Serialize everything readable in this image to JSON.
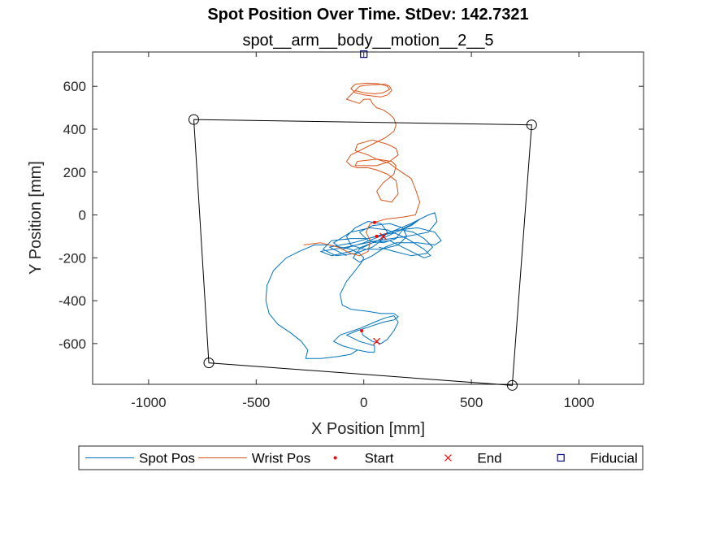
{
  "chart_data": {
    "type": "line",
    "title": "Spot Position Over Time. StDev: 142.7321",
    "subtitle": "spot__arm__body__motion__2__5",
    "xlabel": "X Position [mm]",
    "ylabel": "Y Position [mm]",
    "xlim": [
      -1260,
      1300
    ],
    "ylim": [
      -790,
      760
    ],
    "xticks": [
      -1000,
      -500,
      0,
      500,
      1000
    ],
    "xtick_labels": [
      "-1000",
      "-500",
      "0",
      "500",
      "1000"
    ],
    "yticks": [
      -600,
      -400,
      -200,
      0,
      200,
      400,
      600
    ],
    "ytick_labels": [
      "-600",
      "-400",
      "-200",
      "0",
      "200",
      "400",
      "600"
    ],
    "grid": false,
    "legend_position": "bottom",
    "legend_orientation": "horizontal",
    "series": [
      {
        "name": "Spot Pos",
        "color": "#0072bd",
        "style": "line",
        "points": [
          [
            -10,
            -540
          ],
          [
            -5,
            -560
          ],
          [
            40,
            -590
          ],
          [
            80,
            -600
          ],
          [
            110,
            -580
          ],
          [
            140,
            -540
          ],
          [
            160,
            -500
          ],
          [
            140,
            -470
          ],
          [
            100,
            -480
          ],
          [
            50,
            -500
          ],
          [
            -20,
            -530
          ],
          [
            -110,
            -560
          ],
          [
            -140,
            -590
          ],
          [
            -100,
            -610
          ],
          [
            -30,
            -630
          ],
          [
            20,
            -640
          ],
          [
            50,
            -640
          ],
          [
            50,
            -610
          ],
          [
            -20,
            -590
          ],
          [
            -80,
            -560
          ],
          [
            -30,
            -540
          ],
          [
            30,
            -520
          ],
          [
            90,
            -500
          ],
          [
            140,
            -490
          ],
          [
            160,
            -475
          ],
          [
            140,
            -460
          ],
          [
            80,
            -460
          ],
          [
            20,
            -450
          ],
          [
            -60,
            -440
          ],
          [
            -100,
            -420
          ],
          [
            -110,
            -370
          ],
          [
            -80,
            -310
          ],
          [
            -40,
            -260
          ],
          [
            -10,
            -220
          ],
          [
            0,
            -200
          ],
          [
            -20,
            -180
          ],
          [
            -60,
            -160
          ],
          [
            -160,
            -140
          ],
          [
            -230,
            -140
          ],
          [
            -300,
            -170
          ],
          [
            -360,
            -200
          ],
          [
            -420,
            -260
          ],
          [
            -450,
            -330
          ],
          [
            -455,
            -400
          ],
          [
            -440,
            -460
          ],
          [
            -400,
            -510
          ],
          [
            -340,
            -550
          ],
          [
            -290,
            -590
          ],
          [
            -260,
            -630
          ],
          [
            -270,
            -670
          ],
          [
            -200,
            -670
          ],
          [
            -120,
            -660
          ],
          [
            -60,
            -650
          ],
          [
            -30,
            -630
          ]
        ]
      },
      {
        "name": "Spot Pos",
        "color": "#0072bd",
        "style": "line",
        "points": [
          [
            -80,
            -190
          ],
          [
            -120,
            -170
          ],
          [
            -160,
            -150
          ],
          [
            -50,
            -130
          ],
          [
            60,
            -100
          ],
          [
            150,
            -80
          ],
          [
            220,
            -50
          ],
          [
            260,
            -20
          ],
          [
            230,
            -40
          ],
          [
            150,
            -80
          ],
          [
            40,
            -130
          ],
          [
            -60,
            -170
          ],
          [
            -150,
            -190
          ],
          [
            -200,
            -170
          ],
          [
            -80,
            -150
          ],
          [
            60,
            -120
          ],
          [
            200,
            -100
          ],
          [
            300,
            -80
          ],
          [
            340,
            -30
          ],
          [
            330,
            10
          ],
          [
            300,
            0
          ],
          [
            220,
            -40
          ],
          [
            100,
            -90
          ],
          [
            0,
            -130
          ],
          [
            -100,
            -160
          ],
          [
            -140,
            -130
          ],
          [
            -60,
            -80
          ],
          [
            30,
            -60
          ],
          [
            110,
            -70
          ],
          [
            200,
            -110
          ],
          [
            280,
            -160
          ],
          [
            310,
            -190
          ],
          [
            280,
            -200
          ],
          [
            200,
            -160
          ],
          [
            120,
            -120
          ],
          [
            40,
            -130
          ],
          [
            -20,
            -160
          ],
          [
            -50,
            -200
          ],
          [
            -20,
            -220
          ],
          [
            40,
            -190
          ],
          [
            100,
            -150
          ],
          [
            150,
            -130
          ],
          [
            250,
            -130
          ],
          [
            330,
            -140
          ],
          [
            360,
            -120
          ],
          [
            330,
            -80
          ],
          [
            250,
            -60
          ],
          [
            160,
            -70
          ],
          [
            90,
            -90
          ],
          [
            20,
            -110
          ],
          [
            -60,
            -110
          ],
          [
            -150,
            -120
          ],
          [
            -190,
            -160
          ],
          [
            -130,
            -190
          ],
          [
            -40,
            -180
          ],
          [
            40,
            -150
          ],
          [
            80,
            -120
          ],
          [
            110,
            -80
          ],
          [
            80,
            -40
          ],
          [
            20,
            -30
          ],
          [
            -40,
            -60
          ],
          [
            -80,
            -100
          ],
          [
            -60,
            -140
          ],
          [
            0,
            -160
          ],
          [
            80,
            -160
          ],
          [
            160,
            -140
          ],
          [
            200,
            -100
          ],
          [
            180,
            -60
          ],
          [
            120,
            -40
          ],
          [
            40,
            -50
          ],
          [
            -20,
            -80
          ],
          [
            20,
            -120
          ],
          [
            90,
            -130
          ],
          [
            150,
            -110
          ],
          [
            180,
            -70
          ],
          [
            230,
            -80
          ],
          [
            280,
            -110
          ],
          [
            320,
            -150
          ],
          [
            290,
            -180
          ],
          [
            220,
            -190
          ],
          [
            140,
            -170
          ],
          [
            70,
            -150
          ]
        ]
      },
      {
        "name": "Wrist Pos",
        "color": "#d95319",
        "style": "line",
        "points": [
          [
            -280,
            -140
          ],
          [
            -200,
            -130
          ],
          [
            -120,
            -150
          ],
          [
            -60,
            -180
          ],
          [
            -20,
            -190
          ],
          [
            20,
            -170
          ],
          [
            30,
            -120
          ],
          [
            10,
            -80
          ],
          [
            30,
            -40
          ],
          [
            100,
            -20
          ],
          [
            180,
            -10
          ],
          [
            240,
            0
          ],
          [
            260,
            60
          ],
          [
            240,
            120
          ],
          [
            220,
            170
          ],
          [
            160,
            210
          ],
          [
            120,
            240
          ],
          [
            60,
            260
          ],
          [
            20,
            280
          ],
          [
            -40,
            300
          ],
          [
            -30,
            330
          ],
          [
            40,
            350
          ],
          [
            110,
            330
          ],
          [
            150,
            310
          ],
          [
            160,
            280
          ],
          [
            120,
            250
          ],
          [
            60,
            230
          ],
          [
            -40,
            230
          ],
          [
            -30,
            250
          ],
          [
            60,
            260
          ],
          [
            130,
            250
          ],
          [
            150,
            230
          ],
          [
            140,
            190
          ],
          [
            90,
            150
          ],
          [
            60,
            110
          ],
          [
            80,
            70
          ],
          [
            130,
            60
          ],
          [
            160,
            100
          ],
          [
            150,
            160
          ],
          [
            110,
            190
          ],
          [
            60,
            210
          ],
          [
            20,
            220
          ],
          [
            -30,
            220
          ],
          [
            -60,
            230
          ],
          [
            -80,
            250
          ],
          [
            -60,
            280
          ],
          [
            -20,
            300
          ],
          [
            40,
            330
          ],
          [
            100,
            360
          ],
          [
            140,
            390
          ],
          [
            150,
            420
          ],
          [
            140,
            450
          ],
          [
            120,
            470
          ],
          [
            90,
            490
          ],
          [
            60,
            500
          ],
          [
            40,
            520
          ],
          [
            30,
            540
          ],
          [
            0,
            540
          ],
          [
            -20,
            520
          ],
          [
            -80,
            540
          ],
          [
            -60,
            560
          ],
          [
            -40,
            580
          ],
          [
            -20,
            600
          ],
          [
            10,
            605
          ],
          [
            60,
            608
          ],
          [
            100,
            610
          ],
          [
            120,
            600
          ],
          [
            130,
            580
          ],
          [
            110,
            560
          ],
          [
            80,
            550
          ],
          [
            40,
            555
          ],
          [
            0,
            560
          ],
          [
            -40,
            570
          ],
          [
            -60,
            590
          ],
          [
            -40,
            610
          ],
          [
            20,
            615
          ],
          [
            70,
            612
          ],
          [
            110,
            600
          ],
          [
            120,
            585
          ],
          [
            90,
            570
          ],
          [
            50,
            565
          ],
          [
            0,
            570
          ],
          [
            -40,
            580
          ]
        ]
      },
      {
        "name": "Start",
        "color": "#ff0000",
        "style": "dot",
        "points": [
          [
            -10,
            -540
          ],
          [
            50,
            -35
          ],
          [
            60,
            -100
          ]
        ]
      },
      {
        "name": "End",
        "color": "#ff0000",
        "style": "x",
        "points": [
          [
            60,
            -590
          ],
          [
            90,
            -100
          ]
        ]
      },
      {
        "name": "Fiducial",
        "color": "#000080",
        "style": "square",
        "points": [
          [
            0,
            750
          ]
        ]
      },
      {
        "name": "",
        "color": "#000000",
        "style": "polygon-circles",
        "points": [
          [
            -790,
            445
          ],
          [
            780,
            420
          ],
          [
            690,
            -795
          ],
          [
            -720,
            -690
          ]
        ]
      }
    ],
    "legend": [
      {
        "label": "Spot Pos",
        "color": "#0072bd",
        "marker": "line"
      },
      {
        "label": "Wrist Pos",
        "color": "#d95319",
        "marker": "line"
      },
      {
        "label": "Start",
        "color": "#ff0000",
        "marker": "dot"
      },
      {
        "label": "End",
        "color": "#ff0000",
        "marker": "x"
      },
      {
        "label": "Fiducial",
        "color": "#000080",
        "marker": "square"
      }
    ]
  }
}
